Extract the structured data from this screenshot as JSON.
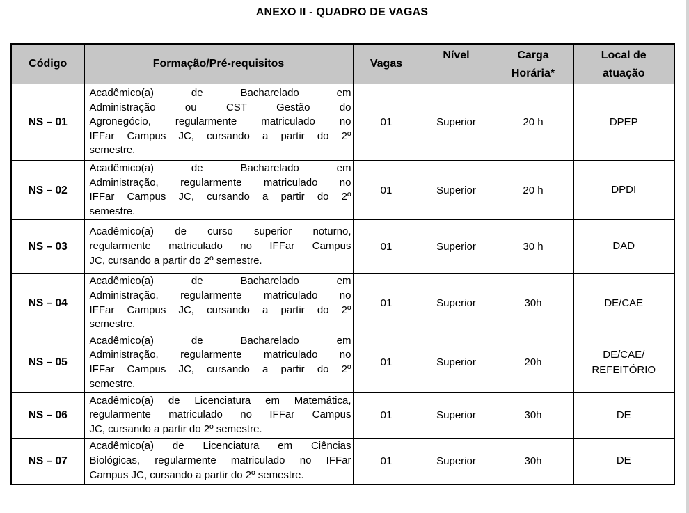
{
  "page": {
    "title": "ANEXO II - QUADRO DE VAGAS"
  },
  "colors": {
    "header_bg": "#c6c6c6",
    "border": "#000000",
    "window_edge": "#d4d4d4"
  },
  "table": {
    "headers": [
      {
        "label": "Código"
      },
      {
        "label": "Formação/Pré-requisitos"
      },
      {
        "label": "Vagas"
      },
      {
        "label": "Nível"
      },
      {
        "label": "Carga\nHorária*"
      },
      {
        "label": "Local de\natuação"
      }
    ],
    "rows": [
      {
        "codigo": "NS – 01",
        "formacao_lines": [
          "Acadêmico(a) de Bacharelado em",
          "Administração ou CST Gestão do",
          "Agronegócio, regularmente matriculado no",
          "IFFar Campus JC, cursando a partir do 2º",
          "semestre."
        ],
        "vagas": "01",
        "nivel": "Superior",
        "carga": "20 h",
        "local": "DPEP"
      },
      {
        "codigo": "NS – 02",
        "formacao_lines": [
          "Acadêmico(a) de Bacharelado em",
          "Administração, regularmente matriculado no",
          "IFFar Campus JC, cursando a partir do 2º",
          "semestre."
        ],
        "vagas": "01",
        "nivel": "Superior",
        "carga": "20 h",
        "local": "DPDI"
      },
      {
        "codigo": "NS – 03",
        "formacao_lines": [
          "Acadêmico(a) de curso superior noturno,",
          "regularmente matriculado no IFFar Campus",
          "JC, cursando a partir do 2º semestre."
        ],
        "vagas": "01",
        "nivel": "Superior",
        "carga": "30 h",
        "local": "DAD"
      },
      {
        "codigo": "NS – 04",
        "formacao_lines": [
          "Acadêmico(a) de Bacharelado em",
          "Administração, regularmente matriculado no",
          "IFFar Campus JC, cursando a partir do 2º",
          "semestre."
        ],
        "vagas": "01",
        "nivel": "Superior",
        "carga": "30h",
        "local": "DE/CAE"
      },
      {
        "codigo": "NS – 05",
        "formacao_lines": [
          "Acadêmico(a) de Bacharelado em",
          "Administração, regularmente matriculado no",
          "IFFar Campus JC, cursando a partir do 2º",
          "semestre."
        ],
        "vagas": "01",
        "nivel": "Superior",
        "carga": "20h",
        "local": "DE/CAE/\nREFEITÓRIO"
      },
      {
        "codigo": "NS – 06",
        "formacao_lines": [
          "Acadêmico(a) de Licenciatura em Matemática,",
          "regularmente matriculado no IFFar Campus",
          "JC, cursando a partir do 2º semestre."
        ],
        "vagas": "01",
        "nivel": "Superior",
        "carga": "30h",
        "local": "DE"
      },
      {
        "codigo": "NS – 07",
        "formacao_lines": [
          "Acadêmico(a) de Licenciatura em Ciências",
          "Biológicas, regularmente matriculado no IFFar",
          "Campus JC, cursando a partir do 2º semestre.",
          ""
        ],
        "vagas": "01",
        "nivel": "Superior",
        "carga": "30h",
        "local": "DE"
      }
    ]
  }
}
